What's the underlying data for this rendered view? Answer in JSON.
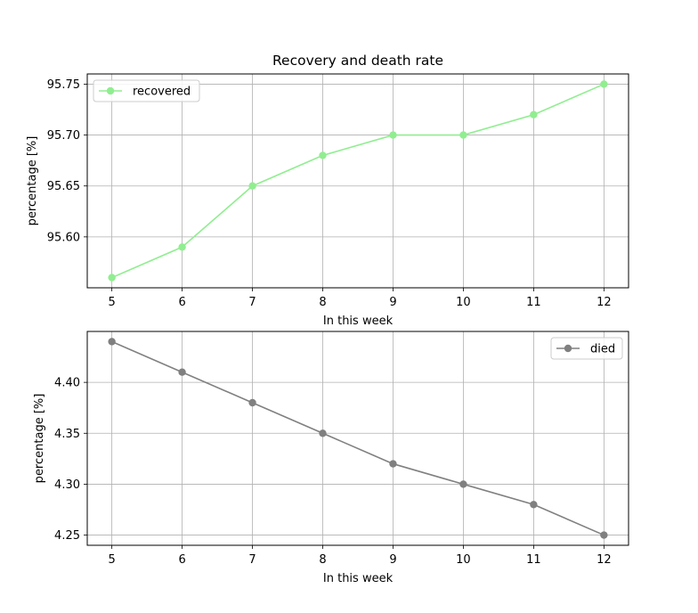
{
  "chart_data": [
    {
      "type": "line",
      "title": "Recovery and death rate",
      "xlabel": "In this week",
      "ylabel": "percentage [%]",
      "x": [
        5,
        6,
        7,
        8,
        9,
        10,
        11,
        12
      ],
      "xticks": [
        "5",
        "6",
        "7",
        "8",
        "9",
        "10",
        "11",
        "12"
      ],
      "xlim": [
        4.65,
        12.35
      ],
      "series": [
        {
          "name": "recovered",
          "color": "#90ee90",
          "values": [
            95.56,
            95.59,
            95.65,
            95.68,
            95.7,
            95.7,
            95.72,
            95.75
          ]
        }
      ],
      "yticks": [
        "95.60",
        "95.65",
        "95.70",
        "95.75"
      ],
      "ylim": [
        95.55,
        95.76
      ],
      "legend": "upper left",
      "grid": true
    },
    {
      "type": "line",
      "title": "",
      "xlabel": "In this week",
      "ylabel": "percentage [%]",
      "x": [
        5,
        6,
        7,
        8,
        9,
        10,
        11,
        12
      ],
      "xticks": [
        "5",
        "6",
        "7",
        "8",
        "9",
        "10",
        "11",
        "12"
      ],
      "xlim": [
        4.65,
        12.35
      ],
      "series": [
        {
          "name": "died",
          "color": "#808080",
          "values": [
            4.44,
            4.41,
            4.38,
            4.35,
            4.32,
            4.3,
            4.28,
            4.25
          ]
        }
      ],
      "yticks": [
        "4.25",
        "4.30",
        "4.35",
        "4.40"
      ],
      "ylim": [
        4.24,
        4.45
      ],
      "legend": "upper right",
      "grid": true
    }
  ]
}
